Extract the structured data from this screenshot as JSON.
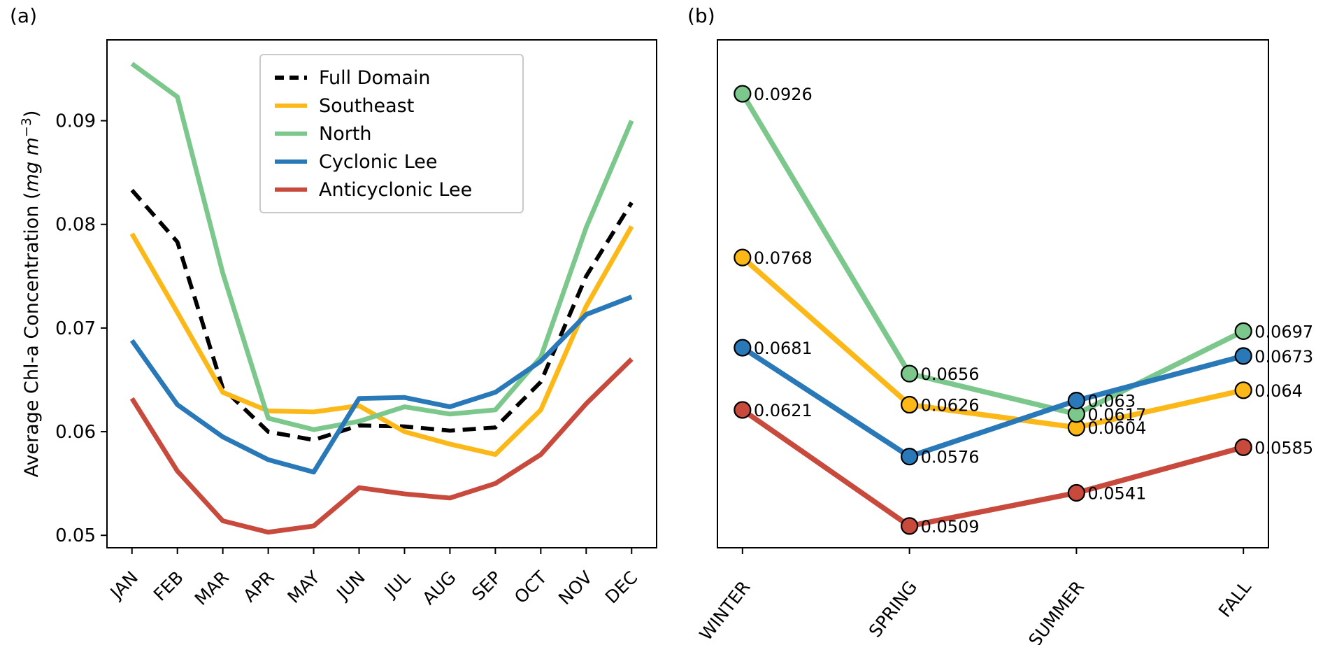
{
  "figure": {
    "panel_a_label": "(a)",
    "panel_b_label": "(b)",
    "ylabel": {
      "prefix": "Average Chl-a Concentration (",
      "units_italic": "mg m",
      "superscript": "−3",
      "suffix": ")"
    }
  },
  "colors": {
    "full_domain": "#000000",
    "southeast": "#FCB816",
    "north": "#7CC88C",
    "cyclonic_lee": "#2979B9",
    "anticyclonic_lee": "#C74A3C",
    "axis": "#000000",
    "legend_border": "#c9c9c9"
  },
  "legend": {
    "items": [
      {
        "label": "Full Domain",
        "color": "#000000",
        "dashed": true
      },
      {
        "label": "Southeast",
        "color": "#FCB816",
        "dashed": false
      },
      {
        "label": "North",
        "color": "#7CC88C",
        "dashed": false
      },
      {
        "label": "Cyclonic Lee",
        "color": "#2979B9",
        "dashed": false
      },
      {
        "label": "Anticyclonic Lee",
        "color": "#C74A3C",
        "dashed": false
      }
    ]
  },
  "chart_data": [
    {
      "type": "line",
      "title": "",
      "xlabel": "",
      "ylabel": "Average Chl-a Concentration (mg m-3)",
      "grid": false,
      "legend_position": "upper left inside",
      "x_categories": [
        "JAN",
        "FEB",
        "MAR",
        "APR",
        "MAY",
        "JUN",
        "JUL",
        "AUG",
        "SEP",
        "OCT",
        "NOV",
        "DEC"
      ],
      "ylim": [
        0.0488,
        0.0978
      ],
      "yticks": [
        0.05,
        0.06,
        0.07,
        0.08,
        0.09
      ],
      "yticklabels": [
        "0.05",
        "0.06",
        "0.07",
        "0.08",
        "0.09"
      ],
      "series": [
        {
          "name": "Full Domain",
          "color": "#000000",
          "dashed": true,
          "values": [
            0.0833,
            0.0783,
            0.0642,
            0.06,
            0.0592,
            0.0606,
            0.0605,
            0.0601,
            0.0604,
            0.0648,
            0.075,
            0.0821
          ]
        },
        {
          "name": "Southeast",
          "color": "#FCB816",
          "dashed": false,
          "values": [
            0.0791,
            0.0715,
            0.0638,
            0.062,
            0.0619,
            0.0625,
            0.06,
            0.0588,
            0.0578,
            0.0621,
            0.0721,
            0.0798
          ]
        },
        {
          "name": "North",
          "color": "#7CC88C",
          "dashed": false,
          "values": [
            0.0955,
            0.0923,
            0.0753,
            0.0613,
            0.0602,
            0.061,
            0.0624,
            0.0617,
            0.0621,
            0.0672,
            0.0797,
            0.09
          ]
        },
        {
          "name": "Cyclonic Lee",
          "color": "#2979B9",
          "dashed": false,
          "values": [
            0.0688,
            0.0626,
            0.0595,
            0.0573,
            0.0561,
            0.0632,
            0.0633,
            0.0624,
            0.0638,
            0.0668,
            0.0713,
            0.073
          ]
        },
        {
          "name": "Anticyclonic Lee",
          "color": "#C74A3C",
          "dashed": false,
          "values": [
            0.0632,
            0.0562,
            0.0514,
            0.0503,
            0.0509,
            0.0546,
            0.054,
            0.0536,
            0.055,
            0.0578,
            0.0627,
            0.067
          ]
        }
      ]
    },
    {
      "type": "line",
      "title": "",
      "xlabel": "",
      "ylabel": "",
      "grid": false,
      "markers": true,
      "x_categories": [
        "WINTER",
        "SPRING",
        "SUMMER",
        "FALL"
      ],
      "ylim": [
        0.0488,
        0.0978
      ],
      "yticks": [],
      "yticklabels": [],
      "series": [
        {
          "name": "Southeast",
          "color": "#FCB816",
          "dashed": false,
          "values": [
            0.0768,
            0.0626,
            0.0604,
            0.064
          ],
          "labels": [
            "0.0768",
            "0.0626",
            "0.0604",
            "0.064"
          ]
        },
        {
          "name": "North",
          "color": "#7CC88C",
          "dashed": false,
          "values": [
            0.0926,
            0.0656,
            0.0617,
            0.0697
          ],
          "labels": [
            "0.0926",
            "0.0656",
            "0.0617",
            "0.0697"
          ]
        },
        {
          "name": "Cyclonic Lee",
          "color": "#2979B9",
          "dashed": false,
          "values": [
            0.0681,
            0.0576,
            0.063,
            0.0673
          ],
          "labels": [
            "0.0681",
            "0.0576",
            "0.063",
            "0.0673"
          ]
        },
        {
          "name": "Anticyclonic Lee",
          "color": "#C74A3C",
          "dashed": false,
          "values": [
            0.0621,
            0.0509,
            0.0541,
            0.0585
          ],
          "labels": [
            "0.0621",
            "0.0509",
            "0.0541",
            "0.0585"
          ]
        }
      ]
    }
  ]
}
